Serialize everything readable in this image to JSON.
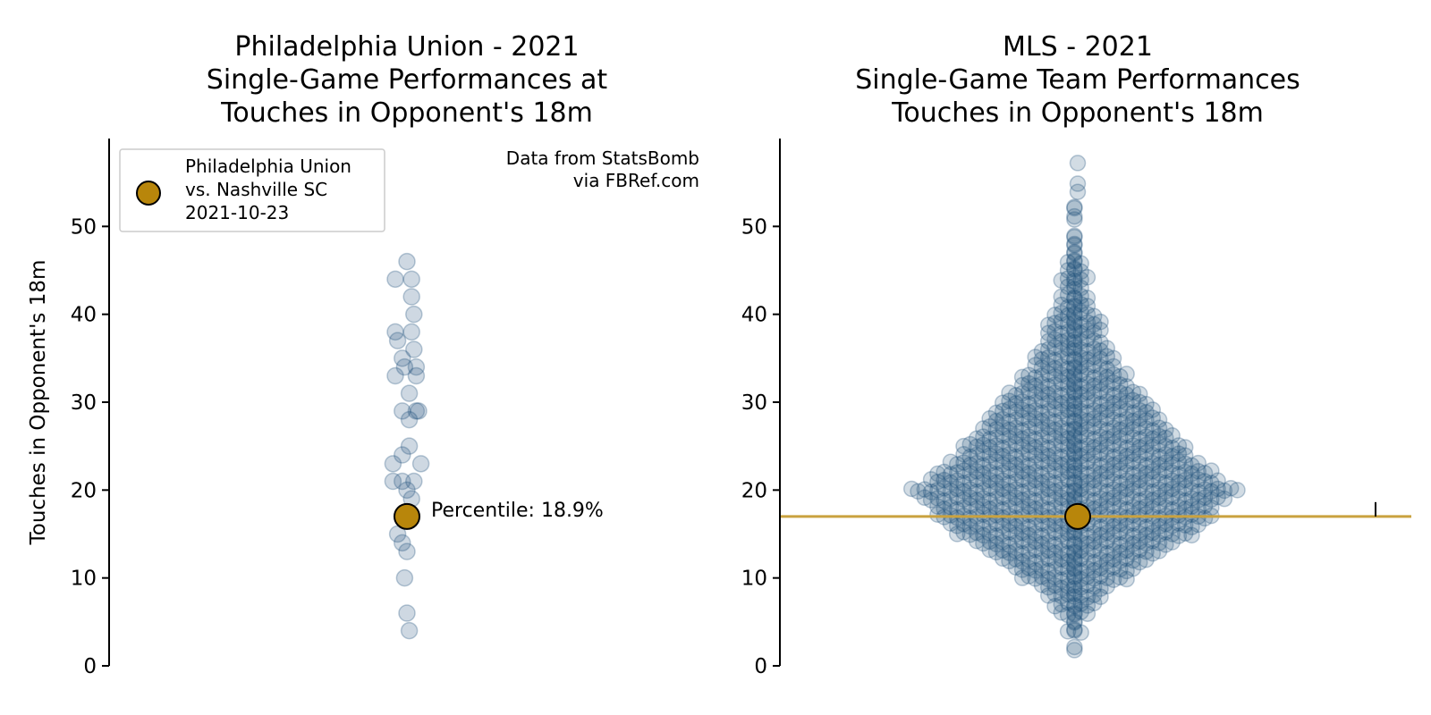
{
  "colors": {
    "point_fill": "#1f4e79",
    "highlight_fill": "#b8860b",
    "highlight_line": "#c9a23f",
    "axis": "#000000",
    "legend_border": "#cccccc"
  },
  "chart_data": [
    {
      "type": "scatter",
      "title": "Philadelphia Union - 2021\nSingle-Game Performances at\nTouches in Opponent's 18m",
      "ylabel": "Touches in Opponent's 18m",
      "xlabel": "",
      "ylim": [
        0,
        60
      ],
      "yticks": [
        0,
        10,
        20,
        30,
        40,
        50
      ],
      "grid": false,
      "legend": {
        "position": "top-left",
        "label": "Philadelphia Union\nvs. Nashville SC\n2021-10-23"
      },
      "credit": "Data from StatsBomb\nvia FBRef.com",
      "annotation": "Percentile: 18.9%",
      "highlight": {
        "y": 17
      },
      "points": [
        {
          "x": 0,
          "y": 46
        },
        {
          "x": -0.5,
          "y": 44
        },
        {
          "x": 0.2,
          "y": 44
        },
        {
          "x": 0.2,
          "y": 42
        },
        {
          "x": 0.3,
          "y": 40
        },
        {
          "x": -0.5,
          "y": 38
        },
        {
          "x": 0.2,
          "y": 38
        },
        {
          "x": -0.4,
          "y": 37
        },
        {
          "x": 0.3,
          "y": 36
        },
        {
          "x": -0.2,
          "y": 35
        },
        {
          "x": 0.4,
          "y": 34
        },
        {
          "x": -0.1,
          "y": 34
        },
        {
          "x": -0.5,
          "y": 33
        },
        {
          "x": 0.4,
          "y": 33
        },
        {
          "x": 0.1,
          "y": 31
        },
        {
          "x": -0.2,
          "y": 29
        },
        {
          "x": 0.4,
          "y": 29
        },
        {
          "x": 0.5,
          "y": 29
        },
        {
          "x": 0.1,
          "y": 28
        },
        {
          "x": 0.1,
          "y": 25
        },
        {
          "x": -0.2,
          "y": 24
        },
        {
          "x": -0.6,
          "y": 23
        },
        {
          "x": 0.6,
          "y": 23
        },
        {
          "x": -0.6,
          "y": 21
        },
        {
          "x": -0.2,
          "y": 21
        },
        {
          "x": 0.3,
          "y": 21
        },
        {
          "x": 0,
          "y": 20
        },
        {
          "x": 0.2,
          "y": 19
        },
        {
          "x": -0.4,
          "y": 15
        },
        {
          "x": -0.2,
          "y": 14
        },
        {
          "x": 0,
          "y": 13
        },
        {
          "x": -0.1,
          "y": 10
        },
        {
          "x": 0,
          "y": 6
        },
        {
          "x": 0.1,
          "y": 4
        }
      ]
    },
    {
      "type": "scatter",
      "title": "MLS - 2021\nSingle-Game Team Performances\nTouches in Opponent's 18m",
      "ylabel": "",
      "xlabel": "",
      "ylim": [
        0,
        60
      ],
      "yticks": [
        0,
        10,
        20,
        30,
        40,
        50
      ],
      "grid": false,
      "highlight": {
        "y": 17
      },
      "reference_line": {
        "y": 17
      },
      "value_counts": [
        [
          2,
          2
        ],
        [
          4,
          4
        ],
        [
          5,
          2
        ],
        [
          6,
          6
        ],
        [
          7,
          8
        ],
        [
          8,
          10
        ],
        [
          9,
          12
        ],
        [
          10,
          18
        ],
        [
          11,
          20
        ],
        [
          12,
          24
        ],
        [
          13,
          28
        ],
        [
          14,
          32
        ],
        [
          15,
          38
        ],
        [
          16,
          40
        ],
        [
          17,
          44
        ],
        [
          18,
          44
        ],
        [
          19,
          48
        ],
        [
          20,
          52
        ],
        [
          21,
          46
        ],
        [
          22,
          44
        ],
        [
          23,
          40
        ],
        [
          24,
          36
        ],
        [
          25,
          36
        ],
        [
          26,
          32
        ],
        [
          27,
          30
        ],
        [
          28,
          28
        ],
        [
          29,
          26
        ],
        [
          30,
          24
        ],
        [
          31,
          22
        ],
        [
          32,
          18
        ],
        [
          33,
          18
        ],
        [
          34,
          14
        ],
        [
          35,
          14
        ],
        [
          36,
          12
        ],
        [
          37,
          10
        ],
        [
          38,
          10
        ],
        [
          39,
          10
        ],
        [
          40,
          8
        ],
        [
          41,
          6
        ],
        [
          42,
          6
        ],
        [
          43,
          4
        ],
        [
          44,
          6
        ],
        [
          45,
          4
        ],
        [
          46,
          4
        ],
        [
          47,
          2
        ],
        [
          48,
          2
        ],
        [
          49,
          2
        ],
        [
          51,
          2
        ],
        [
          52,
          2
        ],
        [
          54,
          1
        ],
        [
          55,
          1
        ],
        [
          57,
          1
        ]
      ]
    }
  ]
}
